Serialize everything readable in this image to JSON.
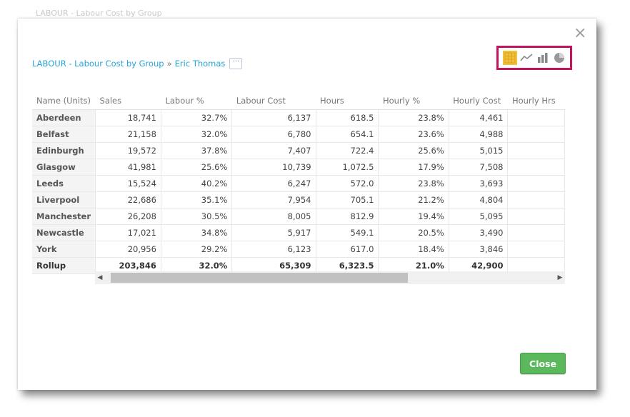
{
  "background_title": "LABOUR - Labour Cost by Group",
  "breadcrumb": {
    "report": "LABOUR - Labour Cost by Group",
    "separator": "»",
    "person": "Eric Thomas",
    "more": "···"
  },
  "viz_switcher": {
    "active": "table",
    "accent_color": "#c0155c",
    "active_color": "#f3c03c",
    "items": [
      "table-icon",
      "line-chart-icon",
      "bar-chart-icon",
      "pie-chart-icon"
    ]
  },
  "table": {
    "columns": [
      "Name (Units)",
      "Sales",
      "Labour %",
      "Labour Cost",
      "Hours",
      "Hourly %",
      "Hourly Cost",
      "Hourly Hrs"
    ],
    "rows": [
      [
        "Aberdeen",
        "18,741",
        "32.7%",
        "6,137",
        "618.5",
        "23.8%",
        "4,461",
        ""
      ],
      [
        "Belfast",
        "21,158",
        "32.0%",
        "6,780",
        "654.1",
        "23.6%",
        "4,988",
        ""
      ],
      [
        "Edinburgh",
        "19,572",
        "37.8%",
        "7,407",
        "722.4",
        "25.6%",
        "5,015",
        ""
      ],
      [
        "Glasgow",
        "41,981",
        "25.6%",
        "10,739",
        "1,072.5",
        "17.9%",
        "7,508",
        ""
      ],
      [
        "Leeds",
        "15,524",
        "40.2%",
        "6,247",
        "572.0",
        "23.8%",
        "3,693",
        ""
      ],
      [
        "Liverpool",
        "22,686",
        "35.1%",
        "7,954",
        "705.1",
        "21.2%",
        "4,804",
        ""
      ],
      [
        "Manchester",
        "26,208",
        "30.5%",
        "8,005",
        "812.9",
        "19.4%",
        "5,095",
        ""
      ],
      [
        "Newcastle",
        "17,021",
        "34.8%",
        "5,917",
        "549.1",
        "20.5%",
        "3,490",
        ""
      ],
      [
        "York",
        "20,956",
        "29.2%",
        "6,123",
        "617.0",
        "18.4%",
        "3,846",
        ""
      ]
    ],
    "rollup": [
      "Rollup",
      "203,846",
      "32.0%",
      "65,309",
      "6,323.5",
      "21.0%",
      "42,900",
      ""
    ]
  },
  "close_button": {
    "label": "Close",
    "color": "#5cb85c"
  },
  "close_x": "×",
  "scroll": {
    "left_arrow": "◀",
    "right_arrow": "▶"
  }
}
